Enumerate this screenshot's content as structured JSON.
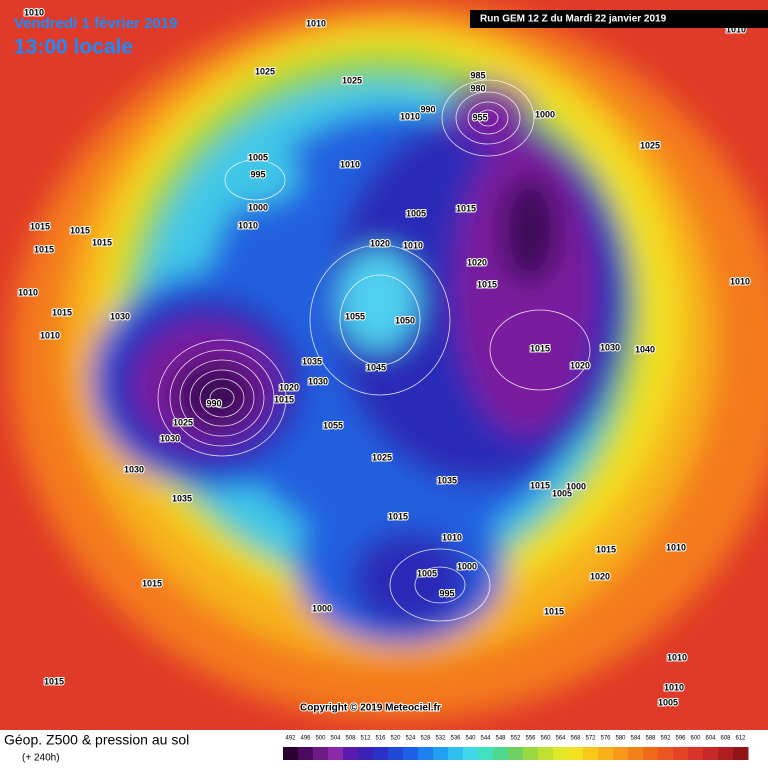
{
  "header": {
    "date": "Vendredi 1 février 2019",
    "time": "13:00 locale",
    "run": "Run GEM 12 Z du Mardi 22 janvier 2019"
  },
  "map": {
    "copyright": "Copyright © 2019 Meteociel.fr",
    "pressure_labels": [
      1010,
      1010,
      1010,
      1025,
      1025,
      985,
      980,
      990,
      1010,
      955,
      1000,
      1025,
      1005,
      995,
      1010,
      1000,
      1010,
      1015,
      1005,
      1015,
      1015,
      1015,
      1015,
      1020,
      1010,
      1020,
      1015,
      1010,
      1010,
      1015,
      1030,
      1055,
      1050,
      1010,
      1015,
      1030,
      1040,
      1035,
      1045,
      1020,
      1020,
      1030,
      1015,
      1025,
      1055,
      1030,
      1025,
      1030,
      1035,
      1015,
      1005,
      1000,
      1035,
      1015,
      1010,
      1015,
      1010,
      1000,
      1005,
      1020,
      1015,
      995,
      1000,
      1015,
      1010,
      1015,
      1010,
      1005,
      990
    ]
  },
  "legend": {
    "title": "Géop. Z500 & pression au sol",
    "lead": "(+ 240h)",
    "scale": [
      492,
      496,
      500,
      504,
      508,
      512,
      516,
      520,
      524,
      528,
      532,
      536,
      540,
      544,
      548,
      552,
      556,
      560,
      564,
      568,
      572,
      576,
      580,
      584,
      588,
      592,
      596,
      600,
      604,
      608,
      612
    ],
    "colors": [
      "#2a0033",
      "#4a0a5e",
      "#6b1a86",
      "#8a2aa8",
      "#5a1ab0",
      "#3a22b8",
      "#2a30c8",
      "#2048d8",
      "#2060e8",
      "#1e80f0",
      "#20a0f0",
      "#30c0f0",
      "#40d8e8",
      "#40e0c0",
      "#50d890",
      "#70d060",
      "#98d840",
      "#c0e030",
      "#e0e828",
      "#f4e020",
      "#f8c818",
      "#f8b018",
      "#f89818",
      "#f48018",
      "#f06818",
      "#ec5420",
      "#e44426",
      "#d8342a",
      "#c82828",
      "#b01c20",
      "#901418"
    ]
  }
}
